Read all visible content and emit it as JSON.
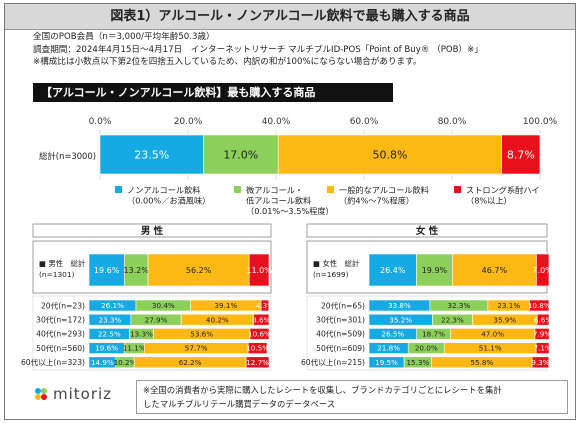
{
  "title": "図表1）アルコール・ノンアルコール飲料で最も購入する商品",
  "notes": [
    "全国のPOB会員（n＝3,000/平均年齢50.3歳）",
    "調査期間：2024年4月15日～4月17日　インターネットリサーチ マルチプルID-POS「Point of Buy® （POB）※」",
    "※構成比は小数点以下第2位を四捨五入しているため、内訳の和が100%にならない場合があります。"
  ],
  "chart_header": "【アルコール・ノンアルコール飲料】最も購入する商品",
  "footnote": [
    "※全国の消費者から実際に購入したレシートを収集し、ブランドカテゴリごとにレシートを集計",
    "したマルチプルリテール購買データのデータベース"
  ],
  "logo_text": "mitoriz",
  "chart_data": {
    "type": "bar",
    "stacked": true,
    "orientation": "horizontal",
    "axis_ticks": [
      "0.0%",
      "20.0%",
      "40.0%",
      "60.0%",
      "80.0%",
      "100.0%"
    ],
    "xlim": [
      0,
      100
    ],
    "colors": [
      "#17a9e3",
      "#8ccf5a",
      "#fdb813",
      "#e8101a"
    ],
    "legend": [
      [
        "ノンアルコール飲料",
        "（0.00%／お酒風味）"
      ],
      [
        "微アルコール・",
        "低アルコール飲料",
        "（0.01%～3.5%程度）"
      ],
      [
        "一般的なアルコール飲料",
        "（約4%～7%程度）"
      ],
      [
        "ストロング系酎ハイ",
        "（8%以上）"
      ]
    ],
    "total": {
      "label": "総計(n=3000)",
      "values": [
        23.5,
        17.0,
        50.8,
        8.7
      ],
      "labels": [
        "23.5%",
        "17.0%",
        "50.8%",
        "8.7%"
      ]
    },
    "male": {
      "header": "男 性",
      "total_label": [
        "■ 男性　総計",
        "(n=1301)"
      ],
      "total_values": [
        19.6,
        13.2,
        56.2,
        11.0
      ],
      "total_labels": [
        "19.6%",
        "13.2%",
        "56.2%",
        "11.0%"
      ],
      "rows": [
        {
          "label": "20代(n=23)",
          "values": [
            26.1,
            30.4,
            39.1,
            4.3
          ],
          "labels": [
            "26.1%",
            "30.4%",
            "39.1%",
            "4.3%"
          ]
        },
        {
          "label": "30代(n=172)",
          "values": [
            23.3,
            27.9,
            40.2,
            8.6
          ],
          "labels": [
            "23.3%",
            "27.9%",
            "40.2%",
            "8.6%"
          ]
        },
        {
          "label": "40代(n=293)",
          "values": [
            22.5,
            13.3,
            53.6,
            10.6
          ],
          "labels": [
            "22.5%",
            "13.3%",
            "53.6%",
            "10.6%"
          ]
        },
        {
          "label": "50代(n=560)",
          "values": [
            19.6,
            11.1,
            57.7,
            10.5
          ],
          "labels": [
            "19.6%",
            "11.1%",
            "57.7%",
            "10.5%"
          ]
        },
        {
          "label": "60代以上(n=323)",
          "values": [
            14.9,
            10.2,
            62.2,
            12.7
          ],
          "labels": [
            "14.9%",
            "10.2%",
            "62.2%",
            "12.7%"
          ]
        }
      ]
    },
    "female": {
      "header": "女 性",
      "total_label": [
        "■ 女性　総計",
        "(n=1699)"
      ],
      "total_values": [
        26.4,
        19.9,
        46.7,
        7.0
      ],
      "total_labels": [
        "26.4%",
        "19.9%",
        "46.7%",
        "7.0%"
      ],
      "rows": [
        {
          "label": "20代(n=65)",
          "values": [
            33.8,
            32.3,
            23.1,
            10.8
          ],
          "labels": [
            "33.8%",
            "32.3%",
            "23.1%",
            "10.8%"
          ]
        },
        {
          "label": "30代(n=301)",
          "values": [
            35.2,
            22.3,
            35.9,
            6.6
          ],
          "labels": [
            "35.2%",
            "22.3%",
            "35.9%",
            "6.6%"
          ]
        },
        {
          "label": "40代(n=509)",
          "values": [
            26.5,
            18.7,
            47.0,
            7.9
          ],
          "labels": [
            "26.5%",
            "18.7%",
            "47.0%",
            "7.9%"
          ]
        },
        {
          "label": "50代(n=609)",
          "values": [
            21.8,
            20.0,
            51.1,
            7.1
          ],
          "labels": [
            "21.8%",
            "20.0%",
            "51.1%",
            "7.1%"
          ]
        },
        {
          "label": "60代以上(n=215)",
          "values": [
            19.5,
            15.3,
            55.8,
            9.3
          ],
          "labels": [
            "19.5%",
            "15.3%",
            "55.8%",
            "9.3%"
          ]
        }
      ]
    }
  }
}
